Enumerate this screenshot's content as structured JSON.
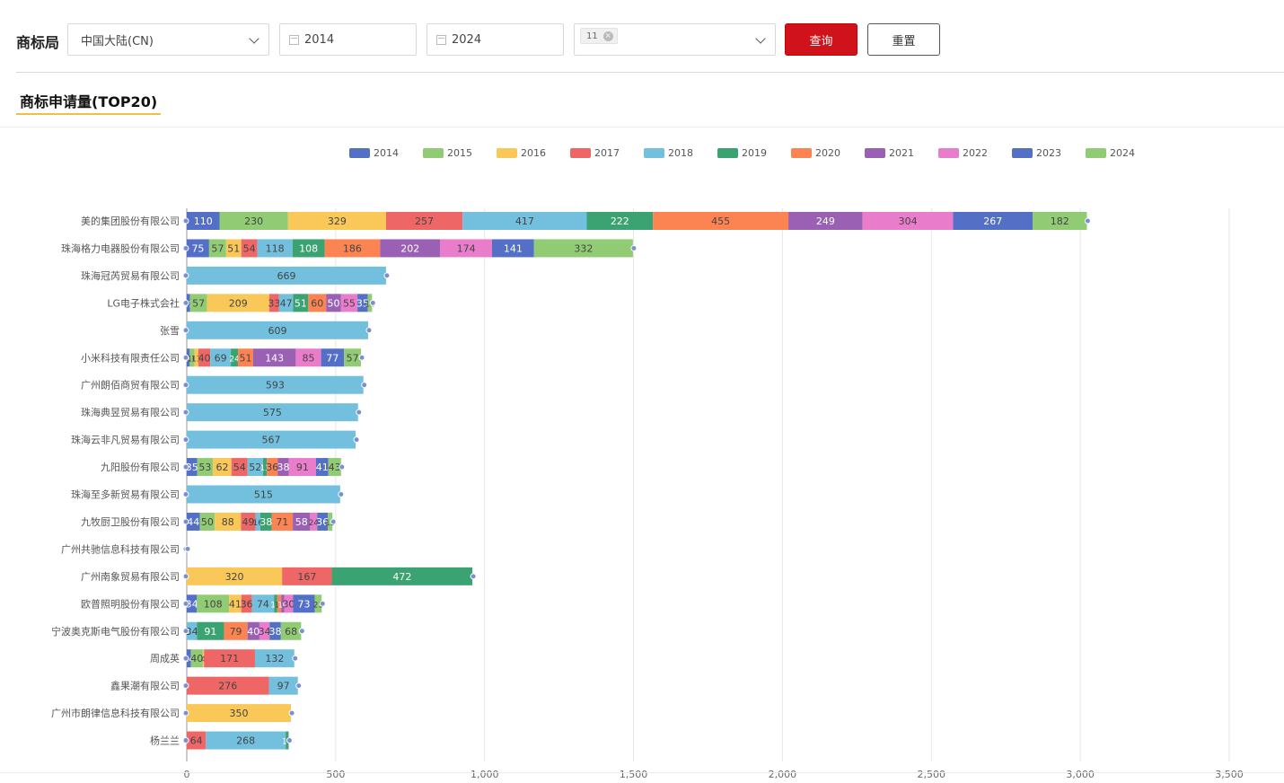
{
  "filter": {
    "label": "商标局",
    "region_value": "中国大陆(CN)",
    "start_year": "2014",
    "end_year": "2024",
    "class_tag": "11",
    "query_label": "查询",
    "reset_label": "重置"
  },
  "section": {
    "title": "商标申请量(TOP20)"
  },
  "colors": [
    "#5470c6",
    "#91cc75",
    "#fac858",
    "#ee6666",
    "#73c0de",
    "#3ba272",
    "#fc8452",
    "#9a60b4",
    "#ea7ccc",
    "#5470c6",
    "#91cc75"
  ],
  "chart_data": {
    "type": "bar",
    "orientation": "horizontal",
    "stacked": true,
    "legend_position": "top",
    "xlim": [
      0,
      3500
    ],
    "xticks": [
      "0",
      "500",
      "1,000",
      "1,500",
      "2,000",
      "2,500",
      "3,000",
      "3,500"
    ],
    "categories": [
      "美的集团股份有限公司",
      "珠海格力电器股份有限公司",
      "珠海冠芮贸易有限公司",
      "LG电子株式会社",
      "张雪",
      "小米科技有限责任公司",
      "广州朗佰商贸有限公司",
      "珠海典昱贸易有限公司",
      "珠海云非凡贸易有限公司",
      "九阳股份有限公司",
      "珠海至多新贸易有限公司",
      "九牧厨卫股份有限公司",
      "广州共驰信息科技有限公司",
      "广州南象贸易有限公司",
      "欧普照明股份有限公司",
      "宁波奥克斯电气股份有限公司",
      "周成英",
      "鑫果潮有限公司",
      "广州市朗律信息科技有限公司",
      "杨兰兰"
    ],
    "series": [
      {
        "name": "2014",
        "values": [
          110,
          75,
          0,
          11,
          0,
          10,
          0,
          0,
          0,
          35,
          0,
          44,
          0,
          0,
          34,
          0,
          14,
          0,
          0,
          0
        ]
      },
      {
        "name": "2015",
        "values": [
          230,
          57,
          0,
          57,
          0,
          16,
          0,
          0,
          0,
          53,
          0,
          50,
          0,
          0,
          108,
          0,
          40,
          0,
          0,
          0
        ]
      },
      {
        "name": "2016",
        "values": [
          329,
          51,
          0,
          209,
          0,
          13,
          0,
          0,
          0,
          62,
          0,
          88,
          0,
          320,
          41,
          0,
          4,
          0,
          350,
          0
        ]
      },
      {
        "name": "2017",
        "values": [
          257,
          54,
          0,
          33,
          0,
          40,
          0,
          0,
          0,
          54,
          0,
          49,
          0,
          167,
          36,
          0,
          171,
          276,
          0,
          64
        ]
      },
      {
        "name": "2018",
        "values": [
          417,
          118,
          669,
          47,
          609,
          69,
          593,
          575,
          567,
          52,
          515,
          16,
          0,
          0,
          74,
          34,
          132,
          97,
          0,
          268
        ]
      },
      {
        "name": "2019",
        "values": [
          222,
          108,
          0,
          51,
          0,
          24,
          0,
          0,
          0,
          13,
          0,
          38,
          0,
          472,
          11,
          91,
          0,
          0,
          0,
          10
        ]
      },
      {
        "name": "2020",
        "values": [
          455,
          186,
          0,
          60,
          0,
          51,
          0,
          0,
          0,
          36,
          0,
          71,
          0,
          0,
          13,
          79,
          0,
          0,
          0,
          0
        ]
      },
      {
        "name": "2021",
        "values": [
          249,
          202,
          0,
          50,
          0,
          143,
          0,
          0,
          0,
          38,
          0,
          58,
          0,
          0,
          10,
          40,
          0,
          0,
          0,
          0
        ]
      },
      {
        "name": "2022",
        "values": [
          304,
          174,
          0,
          55,
          0,
          85,
          0,
          0,
          0,
          91,
          0,
          24,
          0,
          0,
          30,
          34,
          0,
          0,
          0,
          0
        ]
      },
      {
        "name": "2023",
        "values": [
          267,
          141,
          0,
          35,
          0,
          77,
          0,
          0,
          0,
          41,
          0,
          36,
          0,
          0,
          73,
          38,
          0,
          0,
          0,
          0
        ]
      },
      {
        "name": "2024",
        "values": [
          182,
          332,
          0,
          14,
          0,
          57,
          0,
          0,
          0,
          43,
          0,
          15,
          0,
          0,
          23,
          68,
          0,
          0,
          0,
          0
        ]
      }
    ]
  }
}
